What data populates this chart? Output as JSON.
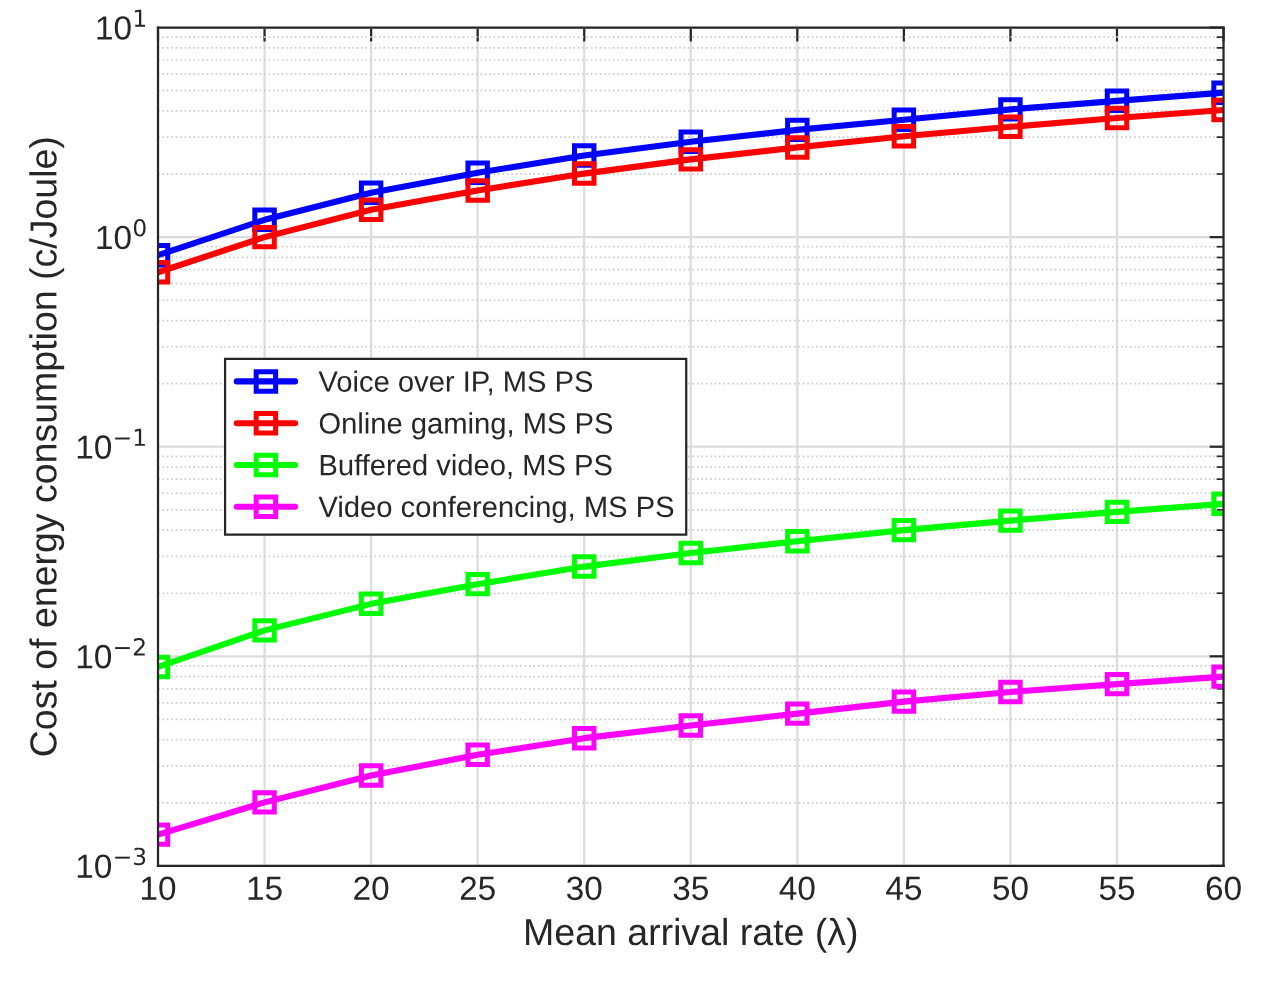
{
  "chart_data": {
    "type": "line",
    "xlabel": "Mean arrival rate (λ)",
    "ylabel": "Cost of energy consumption (c/Joule)",
    "x": [
      10,
      15,
      20,
      25,
      30,
      35,
      40,
      45,
      50,
      55,
      60
    ],
    "series": [
      {
        "name": "Voice over IP, MS PS",
        "color": "#0000ff",
        "values": [
          0.82,
          1.21,
          1.63,
          2.03,
          2.45,
          2.85,
          3.25,
          3.63,
          4.07,
          4.47,
          4.89
        ]
      },
      {
        "name": "Online gaming, MS PS",
        "color": "#ff0000",
        "values": [
          0.68,
          1.0,
          1.35,
          1.67,
          2.01,
          2.35,
          2.68,
          3.03,
          3.36,
          3.7,
          4.04
        ]
      },
      {
        "name": "Buffered video, MS PS",
        "color": "#00ff00",
        "values": [
          0.0089,
          0.0133,
          0.0178,
          0.0221,
          0.0268,
          0.0311,
          0.0354,
          0.04,
          0.0444,
          0.0489,
          0.0534
        ]
      },
      {
        "name": "Video conferencing, MS PS",
        "color": "#ff00ff",
        "values": [
          0.00141,
          0.00201,
          0.0027,
          0.00339,
          0.00407,
          0.00468,
          0.00533,
          0.00608,
          0.00676,
          0.00737,
          0.008
        ]
      }
    ],
    "log": "y",
    "xlim": [
      10,
      60
    ],
    "xticks": [
      10,
      15,
      20,
      25,
      30,
      35,
      40,
      45,
      50,
      55,
      60
    ],
    "ylim": [
      0.001,
      10
    ],
    "yticks": [
      {
        "value": 0.001,
        "label": "10$^{−3}$"
      },
      {
        "value": 0.01,
        "label": "10$^{−2}$"
      },
      {
        "value": 0.1,
        "label": "10$^{−1}$"
      },
      {
        "value": 1,
        "label": "10$^{0}$"
      },
      {
        "value": 10,
        "label": "10$^{1}$"
      }
    ],
    "grid": true,
    "legend": "center left",
    "marker": "square",
    "line_style": "solid"
  }
}
